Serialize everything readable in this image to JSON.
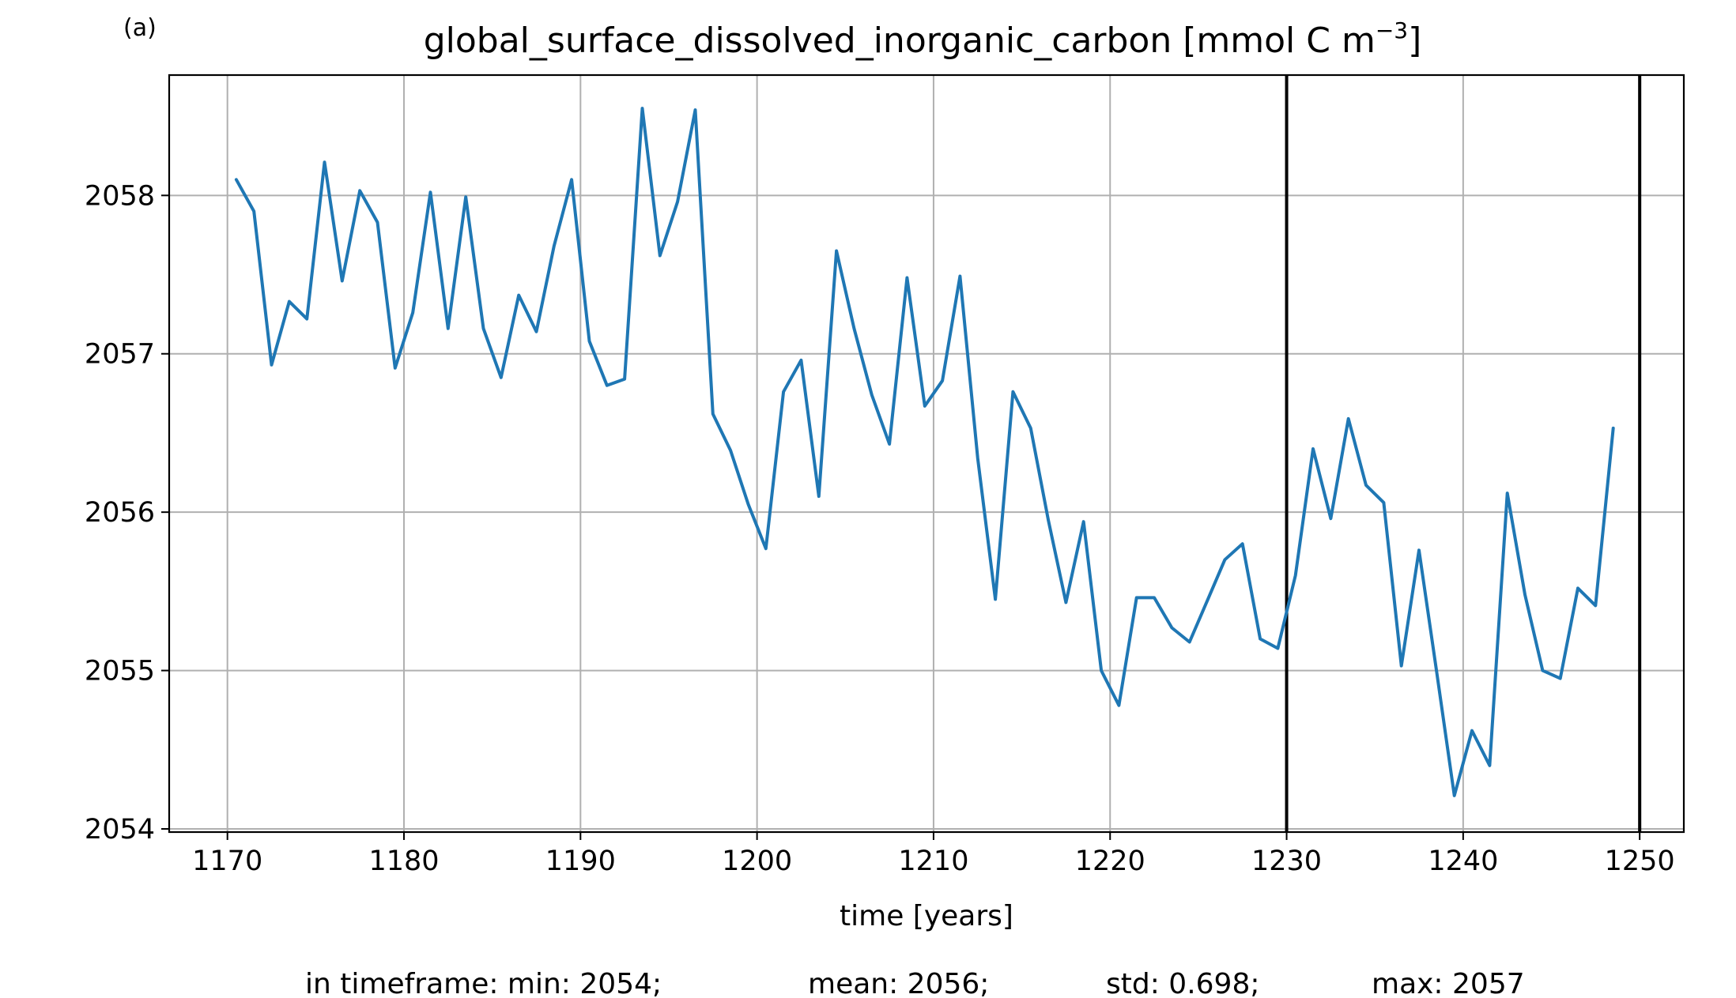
{
  "panel_label": "(a)",
  "chart_data": {
    "type": "line",
    "title": "global_surface_dissolved_inorganic_carbon [mmol C m",
    "title_sup": "−3",
    "title_end": "]",
    "xlabel": "time [years]",
    "ylabel": "",
    "xlim": [
      1166.7,
      1252.5
    ],
    "ylim": [
      2053.98,
      2058.76
    ],
    "xticks": [
      1170,
      1180,
      1190,
      1200,
      1210,
      1220,
      1230,
      1240,
      1250
    ],
    "yticks": [
      2054,
      2055,
      2056,
      2057,
      2058
    ],
    "grid": true,
    "line_color": "#1f77b4",
    "vlines": [
      1230,
      1250
    ],
    "series": [
      {
        "x": [
          1170.5,
          1171.5,
          1172.5,
          1173.5,
          1174.5,
          1175.5,
          1176.5,
          1177.5,
          1178.5,
          1179.5,
          1180.5,
          1181.5,
          1182.5,
          1183.5,
          1184.5,
          1185.5,
          1186.5,
          1187.5,
          1188.5,
          1189.5,
          1190.5,
          1191.5,
          1192.5,
          1193.5,
          1194.5,
          1195.5,
          1196.5,
          1197.5,
          1198.5,
          1199.5,
          1200.5,
          1201.5,
          1202.5,
          1203.5,
          1204.5,
          1205.5,
          1206.5,
          1207.5,
          1208.5,
          1209.5,
          1210.5,
          1211.5,
          1212.5,
          1213.5,
          1214.5,
          1215.5,
          1216.5,
          1217.5,
          1218.5,
          1219.5,
          1220.5,
          1221.5,
          1222.5,
          1223.5,
          1224.5,
          1225.5,
          1226.5,
          1227.5,
          1228.5,
          1229.5,
          1230.5,
          1231.5,
          1232.5,
          1233.5,
          1234.5,
          1235.5,
          1236.5,
          1237.5,
          1238.5,
          1239.5,
          1240.5,
          1241.5,
          1242.5,
          1243.5,
          1244.5,
          1245.5,
          1246.5,
          1247.5,
          1248.5
        ],
        "values": [
          2058.1,
          2057.9,
          2056.93,
          2057.33,
          2057.22,
          2058.21,
          2057.46,
          2058.03,
          2057.83,
          2056.91,
          2057.26,
          2058.02,
          2057.16,
          2057.99,
          2057.16,
          2056.85,
          2057.37,
          2057.14,
          2057.68,
          2058.1,
          2057.08,
          2056.8,
          2056.84,
          2058.55,
          2057.62,
          2057.96,
          2058.54,
          2056.62,
          2056.39,
          2056.05,
          2055.77,
          2056.76,
          2056.96,
          2056.1,
          2057.65,
          2057.16,
          2056.74,
          2056.43,
          2057.48,
          2056.67,
          2056.83,
          2057.49,
          2056.34,
          2055.45,
          2056.76,
          2056.53,
          2055.95,
          2055.43,
          2055.94,
          2055.0,
          2054.78,
          2055.46,
          2055.46,
          2055.27,
          2055.18,
          2055.44,
          2055.7,
          2055.8,
          2055.2,
          2055.14,
          2055.6,
          2056.4,
          2055.96,
          2056.59,
          2056.17,
          2056.06,
          2055.03,
          2055.76,
          2054.99,
          2054.21,
          2054.62,
          2054.4,
          2056.12,
          2055.48,
          2055.0,
          2054.95,
          2055.52,
          2055.41,
          2056.53
        ]
      }
    ]
  },
  "stats": {
    "min": "in timeframe: min: 2054;",
    "mean": "mean: 2056;",
    "std": "std: 0.698;",
    "max": "max: 2057"
  }
}
